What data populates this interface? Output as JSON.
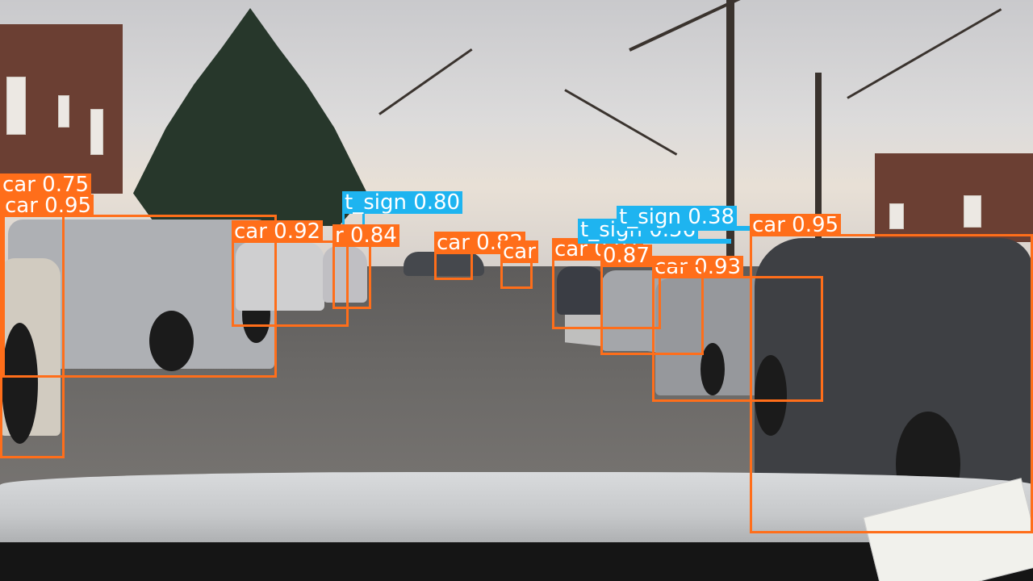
{
  "image": {
    "description_free": true,
    "colors": {
      "car": "#ff6e1a",
      "t_sign": "#1eb4f0",
      "label_text": "#ffffff"
    }
  },
  "detections": [
    {
      "id": "d1",
      "label": "car 0.75",
      "class": "car",
      "box": "b1"
    },
    {
      "id": "d2",
      "label": "car 0.95",
      "class": "car",
      "box": "b2"
    },
    {
      "id": "d3",
      "label": "car 0.92",
      "class": "car",
      "box": "b3"
    },
    {
      "id": "d4",
      "label": "t_sign 0.80",
      "class": "t_sign",
      "box": "b4"
    },
    {
      "id": "d5",
      "label": "r 0.84",
      "class": "car",
      "box": "b5"
    },
    {
      "id": "d6",
      "label": "car 0.82",
      "class": "car",
      "box": "b6"
    },
    {
      "id": "d7",
      "label": "car",
      "class": "car",
      "box": "b7"
    },
    {
      "id": "d8",
      "label": "car 0.91",
      "class": "car",
      "box": "b8"
    },
    {
      "id": "d9",
      "label": "t_sign 0.56",
      "class": "t_sign",
      "box": "b9"
    },
    {
      "id": "d10",
      "label": "t_sign 0.38",
      "class": "t_sign",
      "box": "b10"
    },
    {
      "id": "d11",
      "label": "car 0.95",
      "class": "car",
      "box": "b11"
    },
    {
      "id": "d12",
      "label": "car 0.93",
      "class": "car",
      "box": "b12"
    },
    {
      "id": "d13",
      "label": "0.87",
      "class": "car",
      "box": "b13"
    }
  ]
}
